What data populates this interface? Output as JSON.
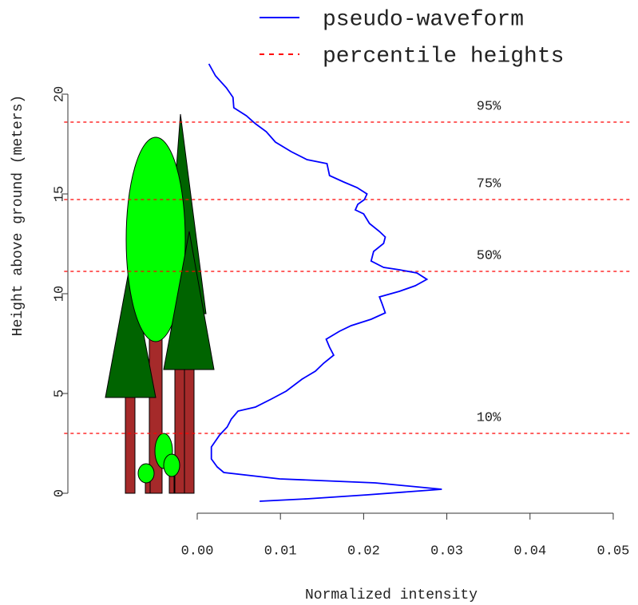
{
  "chart_data": {
    "type": "line",
    "xlabel": "Normalized intensity",
    "ylabel": "Height above ground (meters)",
    "xlim": [
      -0.016,
      0.052
    ],
    "ylim": [
      -0.6,
      21.6
    ],
    "xticks": [
      {
        "value": 0,
        "label": "0.00"
      },
      {
        "value": 0.01,
        "label": "0.01"
      },
      {
        "value": 0.02,
        "label": "0.02"
      },
      {
        "value": 0.03,
        "label": "0.03"
      },
      {
        "value": 0.04,
        "label": "0.04"
      },
      {
        "value": 0.05,
        "label": "0.05"
      }
    ],
    "yticks": [
      0,
      5,
      10,
      15,
      20
    ],
    "legend": "top",
    "series": [
      {
        "name": "pseudo-waveform",
        "color": "#0000ff",
        "x": [
          0.0014,
          0.0022,
          0.0035,
          0.0043,
          0.0044,
          0.0059,
          0.007,
          0.0083,
          0.0094,
          0.0113,
          0.0132,
          0.0156,
          0.0159,
          0.0176,
          0.0192,
          0.0204,
          0.0201,
          0.0193,
          0.019,
          0.02,
          0.0207,
          0.0219,
          0.0226,
          0.0224,
          0.0212,
          0.0209,
          0.0224,
          0.0243,
          0.0264,
          0.0276,
          0.0262,
          0.0243,
          0.0219,
          0.0222,
          0.0226,
          0.0209,
          0.0185,
          0.0171,
          0.0155,
          0.0159,
          0.0164,
          0.0152,
          0.0142,
          0.0126,
          0.0107,
          0.0089,
          0.007,
          0.0049,
          0.0041,
          0.0036,
          0.0027,
          0.0017,
          0.0017,
          0.0024,
          0.0032,
          0.0099,
          0.0214,
          0.0294,
          0.0204,
          0.0132,
          0.0075
        ],
        "values": [
          21.52,
          20.92,
          20.32,
          19.84,
          19.32,
          18.92,
          18.52,
          18.12,
          17.6,
          17.12,
          16.72,
          16.52,
          15.92,
          15.6,
          15.32,
          15.0,
          14.72,
          14.48,
          14.2,
          14.0,
          13.52,
          13.12,
          12.84,
          12.52,
          12.12,
          11.64,
          11.32,
          11.2,
          11.04,
          10.72,
          10.4,
          10.12,
          9.84,
          9.52,
          9.04,
          8.72,
          8.4,
          8.12,
          7.72,
          7.32,
          6.92,
          6.52,
          6.12,
          5.72,
          5.12,
          4.72,
          4.32,
          4.12,
          3.72,
          3.32,
          2.92,
          2.32,
          1.72,
          1.32,
          1.04,
          0.72,
          0.52,
          0.2,
          -0.08,
          -0.28,
          -0.4
        ]
      }
    ],
    "hlines": {
      "name": "percentile heights",
      "color": "#ff0000",
      "values": [
        18.6,
        14.72,
        11.12,
        3.0
      ],
      "labels": [
        "95%",
        "75%",
        "50%",
        "10%"
      ]
    }
  }
}
